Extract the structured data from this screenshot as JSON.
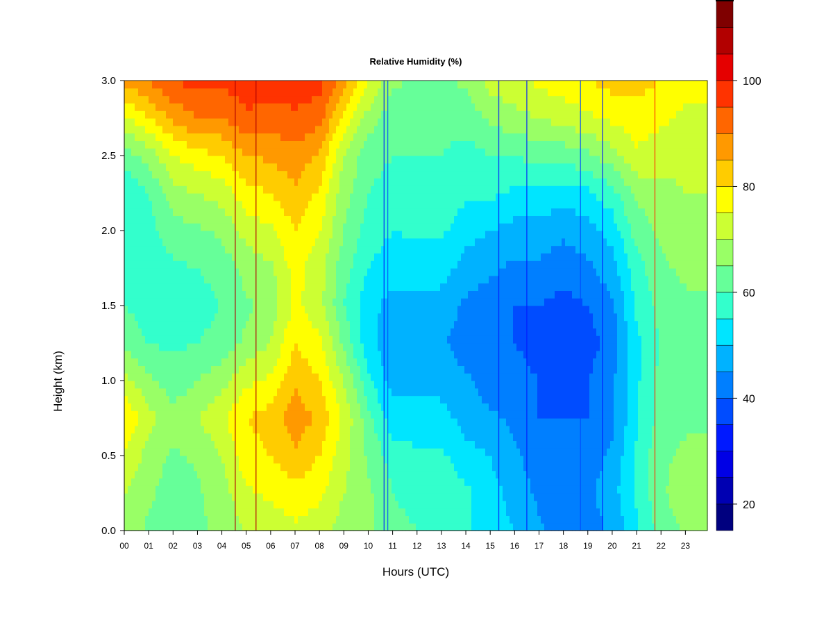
{
  "chart_data": {
    "type": "heatmap",
    "title": "Relative Humidity (%)",
    "xlabel": "Hours (UTC)",
    "ylabel": "Height (km)",
    "xlim": [
      0,
      23.9
    ],
    "ylim": [
      0.0,
      3.0
    ],
    "x_tick_labels": [
      "00",
      "01",
      "02",
      "03",
      "04",
      "05",
      "06",
      "07",
      "08",
      "09",
      "10",
      "11",
      "12",
      "13",
      "14",
      "15",
      "16",
      "17",
      "18",
      "19",
      "20",
      "21",
      "22",
      "23"
    ],
    "y_tick_labels": [
      "0.0",
      "0.5",
      "1.0",
      "1.5",
      "2.0",
      "2.5",
      "3.0"
    ],
    "colorbar": {
      "min": 15,
      "max": 100,
      "step": 5,
      "tick_labels": [
        "20",
        "40",
        "60",
        "80",
        "100"
      ],
      "colors": [
        "#00007F",
        "#0000B2",
        "#0000E5",
        "#0019FF",
        "#004CFF",
        "#007FFF",
        "#00B2FF",
        "#00E5FF",
        "#33FFCC",
        "#66FF99",
        "#99FF66",
        "#CCFF33",
        "#FFFF00",
        "#FFCC00",
        "#FF9900",
        "#FF6600",
        "#FF3300",
        "#E50000",
        "#B20000",
        "#7F0000"
      ]
    },
    "grid": false,
    "hours": [
      0,
      1,
      2,
      3,
      4,
      5,
      6,
      7,
      8,
      9,
      10,
      11,
      12,
      13,
      14,
      15,
      16,
      17,
      18,
      19,
      20,
      21,
      22,
      23
    ],
    "heights_km": [
      0.0,
      0.25,
      0.5,
      0.75,
      1.0,
      1.25,
      1.5,
      1.75,
      2.0,
      2.25,
      2.5,
      2.75,
      3.0
    ],
    "values_rh_percent": [
      [
        68,
        70,
        75,
        80,
        72,
        64,
        60,
        58,
        57,
        56,
        62,
        74,
        86
      ],
      [
        64,
        66,
        68,
        72,
        66,
        60,
        57,
        57,
        58,
        60,
        67,
        80,
        90
      ],
      [
        62,
        62,
        64,
        67,
        62,
        59,
        58,
        59,
        63,
        68,
        75,
        86,
        95
      ],
      [
        64,
        64,
        66,
        70,
        65,
        60,
        58,
        60,
        64,
        70,
        78,
        90,
        97
      ],
      [
        66,
        68,
        70,
        74,
        68,
        62,
        60,
        62,
        66,
        72,
        80,
        90,
        96
      ],
      [
        70,
        74,
        78,
        80,
        74,
        66,
        64,
        67,
        72,
        78,
        85,
        94,
        98
      ],
      [
        72,
        76,
        80,
        82,
        76,
        70,
        67,
        69,
        74,
        80,
        86,
        93,
        97
      ],
      [
        74,
        78,
        84,
        88,
        84,
        80,
        76,
        77,
        80,
        84,
        88,
        94,
        98
      ],
      [
        72,
        76,
        80,
        84,
        80,
        76,
        72,
        72,
        75,
        79,
        84,
        92,
        97
      ],
      [
        68,
        70,
        72,
        74,
        70,
        64,
        60,
        62,
        65,
        67,
        70,
        78,
        88
      ],
      [
        66,
        66,
        64,
        62,
        56,
        52,
        52,
        55,
        58,
        60,
        62,
        68,
        76
      ],
      [
        62,
        60,
        58,
        52,
        48,
        46,
        48,
        52,
        55,
        58,
        60,
        62,
        66
      ],
      [
        60,
        58,
        56,
        52,
        48,
        46,
        48,
        52,
        56,
        58,
        60,
        62,
        64
      ],
      [
        58,
        58,
        56,
        52,
        48,
        46,
        48,
        52,
        56,
        58,
        60,
        62,
        64
      ],
      [
        56,
        56,
        52,
        48,
        46,
        42,
        44,
        48,
        52,
        56,
        58,
        62,
        66
      ],
      [
        52,
        52,
        50,
        46,
        42,
        40,
        42,
        46,
        50,
        56,
        60,
        66,
        72
      ],
      [
        50,
        48,
        46,
        44,
        42,
        40,
        40,
        44,
        48,
        54,
        60,
        68,
        74
      ],
      [
        46,
        44,
        42,
        40,
        40,
        38,
        40,
        44,
        48,
        54,
        62,
        70,
        76
      ],
      [
        42,
        42,
        40,
        40,
        38,
        38,
        38,
        42,
        46,
        52,
        62,
        72,
        78
      ],
      [
        42,
        44,
        42,
        40,
        40,
        38,
        40,
        44,
        48,
        54,
        64,
        74,
        80
      ],
      [
        46,
        48,
        46,
        44,
        44,
        42,
        44,
        48,
        52,
        58,
        68,
        76,
        82
      ],
      [
        54,
        56,
        56,
        54,
        54,
        54,
        56,
        58,
        62,
        66,
        74,
        78,
        82
      ],
      [
        62,
        64,
        64,
        62,
        62,
        60,
        62,
        64,
        66,
        68,
        72,
        76,
        80
      ],
      [
        66,
        68,
        66,
        64,
        64,
        62,
        64,
        66,
        68,
        70,
        72,
        74,
        76
      ]
    ]
  }
}
